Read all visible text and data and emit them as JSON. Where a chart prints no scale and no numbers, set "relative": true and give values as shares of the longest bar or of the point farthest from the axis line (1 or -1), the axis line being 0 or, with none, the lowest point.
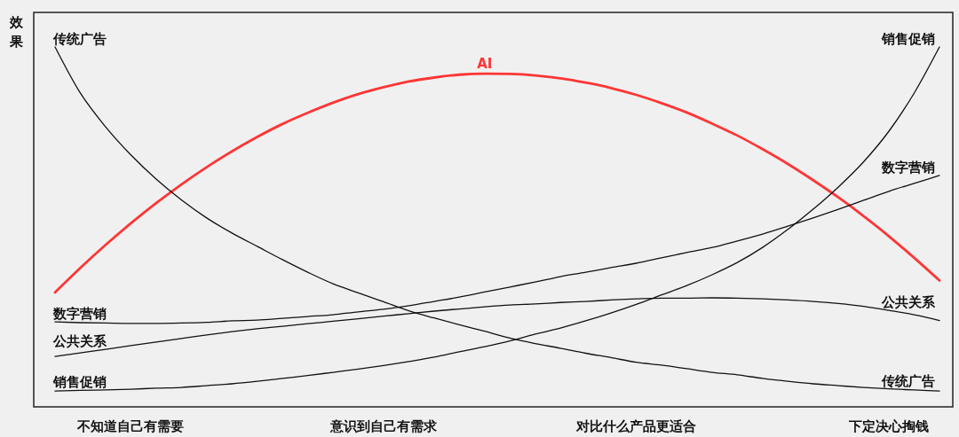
{
  "chart_data": {
    "type": "line",
    "ylabel": "效果",
    "relative": true,
    "categories": [
      null,
      null,
      null,
      "不知道自己有需要",
      null,
      null,
      null,
      null,
      null,
      null,
      null,
      null,
      null,
      "意识到自己有需求",
      null,
      null,
      null,
      null,
      null,
      null,
      null,
      null,
      null,
      "对比什么产品更适合",
      null,
      null,
      null,
      null,
      null,
      null,
      null,
      null,
      null,
      "下定决心掏钱",
      null,
      null
    ],
    "series": [
      {
        "name": "AI",
        "color": "#ff3535",
        "values": [
          0.318,
          0.386,
          0.45,
          0.51,
          0.566,
          0.618,
          0.666,
          0.71,
          0.75,
          0.786,
          0.817,
          0.845,
          0.869,
          0.888,
          0.904,
          0.915,
          0.923,
          0.926,
          0.925,
          0.921,
          0.913,
          0.901,
          0.886,
          0.867,
          0.844,
          0.818,
          0.787,
          0.754,
          0.716,
          0.675,
          0.63,
          0.582,
          0.53,
          0.474,
          0.414,
          0.351
        ]
      },
      {
        "name": "传统广告",
        "color": "#111111",
        "values": [
          1.0,
          0.872,
          0.778,
          0.7,
          0.633,
          0.575,
          0.525,
          0.483,
          0.446,
          0.409,
          0.374,
          0.342,
          0.317,
          0.292,
          0.267,
          0.247,
          0.228,
          0.21,
          0.191,
          0.176,
          0.163,
          0.149,
          0.137,
          0.124,
          0.116,
          0.106,
          0.096,
          0.089,
          0.079,
          0.071,
          0.064,
          0.059,
          0.054,
          0.05,
          0.047,
          0.044
        ]
      },
      {
        "name": "数字营销",
        "color": "#111111",
        "values": [
          0.236,
          0.234,
          0.233,
          0.232,
          0.232,
          0.233,
          0.235,
          0.239,
          0.241,
          0.246,
          0.251,
          0.256,
          0.264,
          0.271,
          0.281,
          0.293,
          0.305,
          0.319,
          0.333,
          0.347,
          0.362,
          0.374,
          0.387,
          0.399,
          0.414,
          0.429,
          0.443,
          0.461,
          0.48,
          0.502,
          0.525,
          0.549,
          0.574,
          0.599,
          0.621,
          0.643
        ]
      },
      {
        "name": "公共关系",
        "color": "#111111",
        "values": [
          0.14,
          0.15,
          0.16,
          0.17,
          0.18,
          0.19,
          0.2,
          0.209,
          0.217,
          0.224,
          0.231,
          0.238,
          0.245,
          0.252,
          0.259,
          0.266,
          0.272,
          0.278,
          0.283,
          0.286,
          0.29,
          0.293,
          0.297,
          0.3,
          0.302,
          0.302,
          0.303,
          0.302,
          0.3,
          0.297,
          0.293,
          0.287,
          0.279,
          0.268,
          0.256,
          0.24
        ]
      },
      {
        "name": "销售促销",
        "color": "#111111",
        "values": [
          0.044,
          0.046,
          0.047,
          0.049,
          0.052,
          0.054,
          0.059,
          0.064,
          0.071,
          0.079,
          0.087,
          0.096,
          0.105,
          0.115,
          0.126,
          0.138,
          0.153,
          0.167,
          0.183,
          0.202,
          0.219,
          0.239,
          0.261,
          0.285,
          0.311,
          0.337,
          0.367,
          0.401,
          0.443,
          0.493,
          0.549,
          0.611,
          0.681,
          0.766,
          0.872,
          1.0
        ]
      }
    ]
  }
}
